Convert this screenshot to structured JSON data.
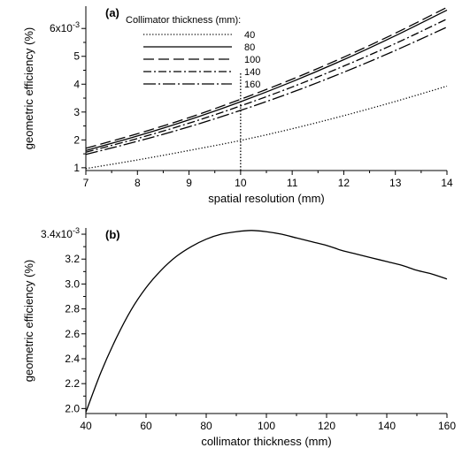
{
  "chart_data": [
    {
      "type": "line",
      "panel_label": "(a)",
      "xlabel": "spatial resolution (mm)",
      "ylabel": "geometric efficiency (%)",
      "xlim": [
        7,
        14
      ],
      "ylim": [
        0.0009,
        0.0068
      ],
      "xticks": [
        7,
        8,
        9,
        10,
        11,
        12,
        13,
        14
      ],
      "yticks": [
        0.001,
        0.002,
        0.003,
        0.004,
        0.005,
        0.006
      ],
      "ytick_labels": [
        "1",
        "2",
        "3",
        "4",
        "5",
        "6x10-3"
      ],
      "grid": false,
      "legend_title": "Collimator thickness (mm):",
      "legend_position": "top-left",
      "reference_line": {
        "x": 10,
        "style": "dotted"
      },
      "x": [
        7,
        8,
        9,
        10,
        11,
        12,
        13,
        14
      ],
      "series": [
        {
          "name": "40",
          "style": "dotted",
          "values": [
            0.00097,
            0.00128,
            0.00162,
            0.00198,
            0.0024,
            0.00287,
            0.00338,
            0.00393
          ]
        },
        {
          "name": "80",
          "style": "solid",
          "values": [
            0.00162,
            0.00214,
            0.00272,
            0.00337,
            0.00409,
            0.00488,
            0.00574,
            0.00666
          ]
        },
        {
          "name": "100",
          "style": "long-dash",
          "values": [
            0.0017,
            0.00222,
            0.0028,
            0.00346,
            0.00418,
            0.00497,
            0.00583,
            0.00676
          ]
        },
        {
          "name": "140",
          "style": "dash-dot",
          "values": [
            0.00156,
            0.00205,
            0.0026,
            0.00322,
            0.0039,
            0.00465,
            0.00546,
            0.00634
          ]
        },
        {
          "name": "160",
          "style": "long-dash-dot",
          "values": [
            0.00148,
            0.00195,
            0.00247,
            0.00306,
            0.00371,
            0.00443,
            0.00521,
            0.00605
          ]
        }
      ]
    },
    {
      "type": "line",
      "panel_label": "(b)",
      "xlabel": "collimator thickness (mm)",
      "ylabel": "geometric efficiency (%)",
      "xlim": [
        40,
        160
      ],
      "ylim": [
        0.00196,
        0.00345
      ],
      "xticks": [
        40,
        60,
        80,
        100,
        120,
        140,
        160
      ],
      "yticks": [
        0.002,
        0.0022,
        0.0024,
        0.0026,
        0.0028,
        0.003,
        0.0032,
        0.0034
      ],
      "ytick_labels": [
        "2.0",
        "2.2",
        "2.4",
        "2.6",
        "2.8",
        "3.0",
        "3.2",
        "3.4x10-3"
      ],
      "grid": false,
      "x": [
        40,
        45,
        50,
        55,
        60,
        65,
        70,
        75,
        80,
        85,
        90,
        95,
        100,
        105,
        110,
        115,
        120,
        125,
        130,
        135,
        140,
        145,
        150,
        155,
        160
      ],
      "series": [
        {
          "values": [
            0.00197,
            0.00229,
            0.00256,
            0.00279,
            0.00297,
            0.00311,
            0.00322,
            0.0033,
            0.00336,
            0.0034,
            0.00342,
            0.00343,
            0.00342,
            0.0034,
            0.00337,
            0.00334,
            0.00331,
            0.00327,
            0.00324,
            0.00321,
            0.00318,
            0.00315,
            0.00311,
            0.00308,
            0.00304
          ]
        }
      ]
    }
  ]
}
